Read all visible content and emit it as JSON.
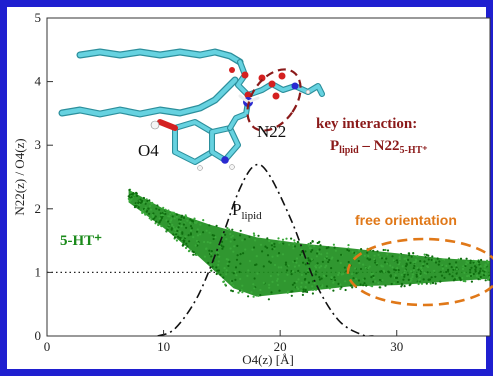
{
  "chart_data": {
    "type": "scatter",
    "xlabel": "O4(z)  [Å]",
    "ylabel": "N22(z) / O4(z)",
    "xlim": [
      0,
      38
    ],
    "ylim": [
      0,
      5
    ],
    "x_ticks": [
      "0",
      "10",
      "20",
      "30"
    ],
    "y_ticks": [
      "0",
      "1",
      "2",
      "3",
      "4",
      "5"
    ],
    "grid": false,
    "reference_line": {
      "y": 1,
      "style": "dotted"
    },
    "series": [
      {
        "name": "5-HT⁺",
        "kind": "scatter-band",
        "color": "#1a8a1a",
        "upper": [
          [
            7,
            2.3
          ],
          [
            10,
            2.0
          ],
          [
            14,
            1.75
          ],
          [
            18,
            1.55
          ],
          [
            22,
            1.45
          ],
          [
            26,
            1.38
          ],
          [
            30,
            1.3
          ],
          [
            34,
            1.22
          ],
          [
            38,
            1.18
          ]
        ],
        "lower": [
          [
            7,
            2.1
          ],
          [
            10,
            1.7
          ],
          [
            13,
            1.25
          ],
          [
            16,
            0.75
          ],
          [
            18,
            0.62
          ],
          [
            22,
            0.7
          ],
          [
            26,
            0.78
          ],
          [
            30,
            0.8
          ],
          [
            34,
            0.85
          ],
          [
            38,
            0.9
          ]
        ]
      },
      {
        "name": "P_lipid",
        "kind": "density-curve",
        "style": "dash-dot",
        "color": "#111111",
        "points": [
          [
            9.5,
            0.0
          ],
          [
            11,
            0.12
          ],
          [
            13,
            0.65
          ],
          [
            15,
            1.55
          ],
          [
            16.5,
            2.3
          ],
          [
            17.8,
            2.68
          ],
          [
            19,
            2.55
          ],
          [
            21,
            1.8
          ],
          [
            23,
            0.85
          ],
          [
            25,
            0.25
          ],
          [
            27,
            0.02
          ],
          [
            28,
            0.0
          ]
        ]
      }
    ],
    "annotations": {
      "key_title": "key interaction:",
      "key_p": "P",
      "key_p_sub": "lipid",
      "key_dash": " – N22",
      "key_sub": "5-HT⁺",
      "free": "free orientation",
      "series_label": "5-HT⁺",
      "plipid_p": "P",
      "plipid_sub": "lipid",
      "o4": "O4",
      "n22": "N22"
    },
    "colors": {
      "frame": "#1f1fd0",
      "key_interaction": "#8b1a1a",
      "free_orientation": "#e07818",
      "carbon": "#56c8d8",
      "oxygen": "#d42020",
      "nitrogen": "#2a2ad0",
      "hydrogen": "#f4f4f4"
    }
  }
}
